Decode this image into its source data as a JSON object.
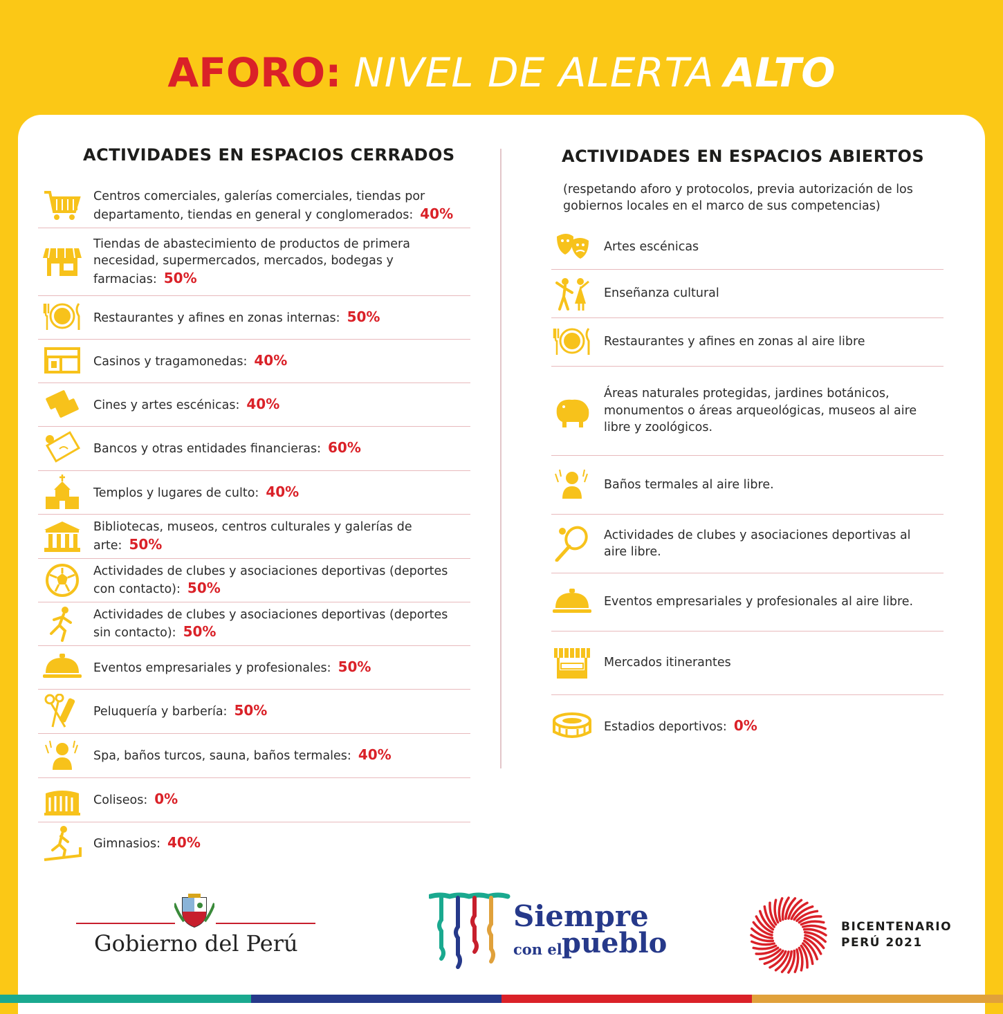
{
  "header": {
    "title_part1": "AFORO:",
    "title_part2": "NIVEL DE ALERTA",
    "title_part3": "ALTO"
  },
  "left": {
    "heading": "ACTIVIDADES EN ESPACIOS CERRADOS",
    "items": [
      {
        "text": "Centros comerciales, galerías comerciales, tiendas por departamento, tiendas en general y conglomerados:",
        "pct": "40%",
        "icon": "shopping-cart-icon"
      },
      {
        "text": "Tiendas de abastecimiento de productos de primera necesidad, supermercados, mercados, bodegas y farmacias:",
        "pct": "50%",
        "icon": "store-icon"
      },
      {
        "text": "Restaurantes y afines en zonas internas:",
        "pct": "50%",
        "icon": "plate-cutlery-icon"
      },
      {
        "text": "Casinos y tragamonedas:",
        "pct": "40%",
        "icon": "casino-icon"
      },
      {
        "text": "Cines y artes escénicas:",
        "pct": "40%",
        "icon": "cinema-ticket-icon"
      },
      {
        "text": "Bancos y otras entidades financieras:",
        "pct": "60%",
        "icon": "money-icon"
      },
      {
        "text": "Templos y lugares de culto:",
        "pct": "40%",
        "icon": "church-icon"
      },
      {
        "text": "Bibliotecas, museos, centros culturales y galerías de arte:",
        "pct": "50%",
        "icon": "museum-icon"
      },
      {
        "text": "Actividades de clubes y asociaciones deportivas (deportes con contacto):",
        "pct": "50%",
        "icon": "soccer-ball-icon"
      },
      {
        "text": "Actividades de clubes y asociaciones deportivas (deportes sin contacto):",
        "pct": "50%",
        "icon": "runner-icon"
      },
      {
        "text": "Eventos empresariales y profesionales:",
        "pct": "50%",
        "icon": "serving-dish-icon"
      },
      {
        "text": "Peluquería y barbería:",
        "pct": "50%",
        "icon": "scissors-comb-icon"
      },
      {
        "text": "Spa, baños turcos, sauna, baños termales:",
        "pct": "40%",
        "icon": "spa-person-icon"
      },
      {
        "text": "Coliseos:",
        "pct": "0%",
        "icon": "coliseum-icon"
      },
      {
        "text": "Gimnasios:",
        "pct": "40%",
        "icon": "treadmill-icon"
      }
    ]
  },
  "right": {
    "heading": "ACTIVIDADES EN ESPACIOS ABIERTOS",
    "note": "(respetando aforo y protocolos, previa autorización de los gobiernos locales en el marco de sus competencias)",
    "items": [
      {
        "text": "Artes escénicas",
        "pct": "",
        "icon": "theater-masks-icon"
      },
      {
        "text": "Enseñanza cultural",
        "pct": "",
        "icon": "dancers-icon"
      },
      {
        "text": "Restaurantes y afines en zonas al aire libre",
        "pct": "",
        "icon": "plate-cutlery-icon"
      },
      {
        "text": "Áreas naturales protegidas, jardines botánicos, monumentos o áreas arqueológicas, museos al aire libre y zoológicos.",
        "pct": "",
        "icon": "hippo-icon"
      },
      {
        "text": "Baños termales al aire libre.",
        "pct": "",
        "icon": "spa-person-icon"
      },
      {
        "text": "Actividades de clubes y asociaciones deportivas al aire libre.",
        "pct": "",
        "icon": "tennis-racket-icon"
      },
      {
        "text": "Eventos empresariales y profesionales al aire libre.",
        "pct": "",
        "icon": "serving-dish-icon"
      },
      {
        "text": "Mercados itinerantes",
        "pct": "",
        "icon": "market-stall-icon"
      },
      {
        "text": "Estadios deportivos:",
        "pct": "0%",
        "icon": "stadium-icon"
      }
    ]
  },
  "footer": {
    "gobierno": "Gobierno del Perú",
    "siempre": "Siempre",
    "con_el": "con el",
    "pueblo": "pueblo",
    "bicentenario_line1": "BICENTENARIO",
    "bicentenario_line2": "PERÚ 2021"
  },
  "colors": {
    "yellow": "#fbc816",
    "red": "#da2128",
    "icon": "#f7c21b",
    "navy": "#26398a",
    "teal": "#1aa98f"
  }
}
